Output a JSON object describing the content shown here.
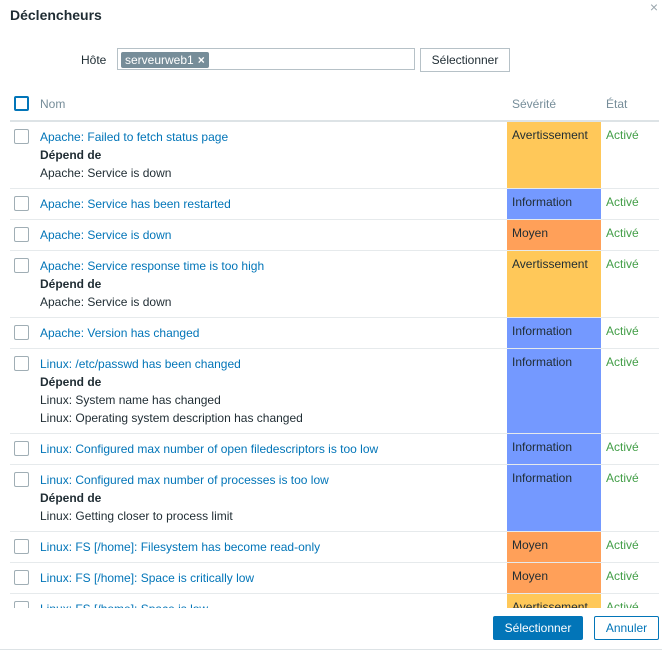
{
  "dialog": {
    "title": "Déclencheurs",
    "close_icon": "×"
  },
  "filter": {
    "host_label": "Hôte",
    "host_tag": "serveurweb1",
    "tag_remove": "×",
    "select_label": "Sélectionner"
  },
  "table": {
    "headers": {
      "name": "Nom",
      "severity": "Sévérité",
      "state": "État"
    },
    "rows": [
      {
        "name": "Apache: Failed to fetch status page",
        "depends_title": "Dépend de",
        "depends": [
          "Apache: Service is down"
        ],
        "severity": "Avertissement",
        "severity_class": "warn",
        "state": "Activé"
      },
      {
        "name": "Apache: Service has been restarted",
        "depends": [],
        "severity": "Information",
        "severity_class": "info",
        "state": "Activé"
      },
      {
        "name": "Apache: Service is down",
        "depends": [],
        "severity": "Moyen",
        "severity_class": "avg",
        "state": "Activé"
      },
      {
        "name": "Apache: Service response time is too high",
        "depends_title": "Dépend de",
        "depends": [
          "Apache: Service is down"
        ],
        "severity": "Avertissement",
        "severity_class": "warn",
        "state": "Activé"
      },
      {
        "name": "Apache: Version has changed",
        "depends": [],
        "severity": "Information",
        "severity_class": "info",
        "state": "Activé"
      },
      {
        "name": "Linux: /etc/passwd has been changed",
        "depends_title": "Dépend de",
        "depends": [
          "Linux: System name has changed",
          "Linux: Operating system description has changed"
        ],
        "severity": "Information",
        "severity_class": "info",
        "state": "Activé"
      },
      {
        "name": "Linux: Configured max number of open filedescriptors is too low",
        "depends": [],
        "severity": "Information",
        "severity_class": "info",
        "state": "Activé"
      },
      {
        "name": "Linux: Configured max number of processes is too low",
        "depends_title": "Dépend de",
        "depends": [
          "Linux: Getting closer to process limit"
        ],
        "severity": "Information",
        "severity_class": "info",
        "state": "Activé"
      },
      {
        "name": "Linux: FS [/home]: Filesystem has become read-only",
        "depends": [],
        "severity": "Moyen",
        "severity_class": "avg",
        "state": "Activé"
      },
      {
        "name": "Linux: FS [/home]: Space is critically low",
        "depends": [],
        "severity": "Moyen",
        "severity_class": "avg",
        "state": "Activé"
      },
      {
        "name": "Linux: FS [/home]: Space is low",
        "depends": [],
        "severity": "Avertissement",
        "severity_class": "warn",
        "state": "Activé"
      }
    ]
  },
  "footer": {
    "select_label": "Sélectionner",
    "cancel_label": "Annuler"
  },
  "colors": {
    "warn": "#ffc859",
    "info": "#7499ff",
    "avg": "#ffa059",
    "accent": "#0275b8",
    "enabled": "#429e47"
  }
}
